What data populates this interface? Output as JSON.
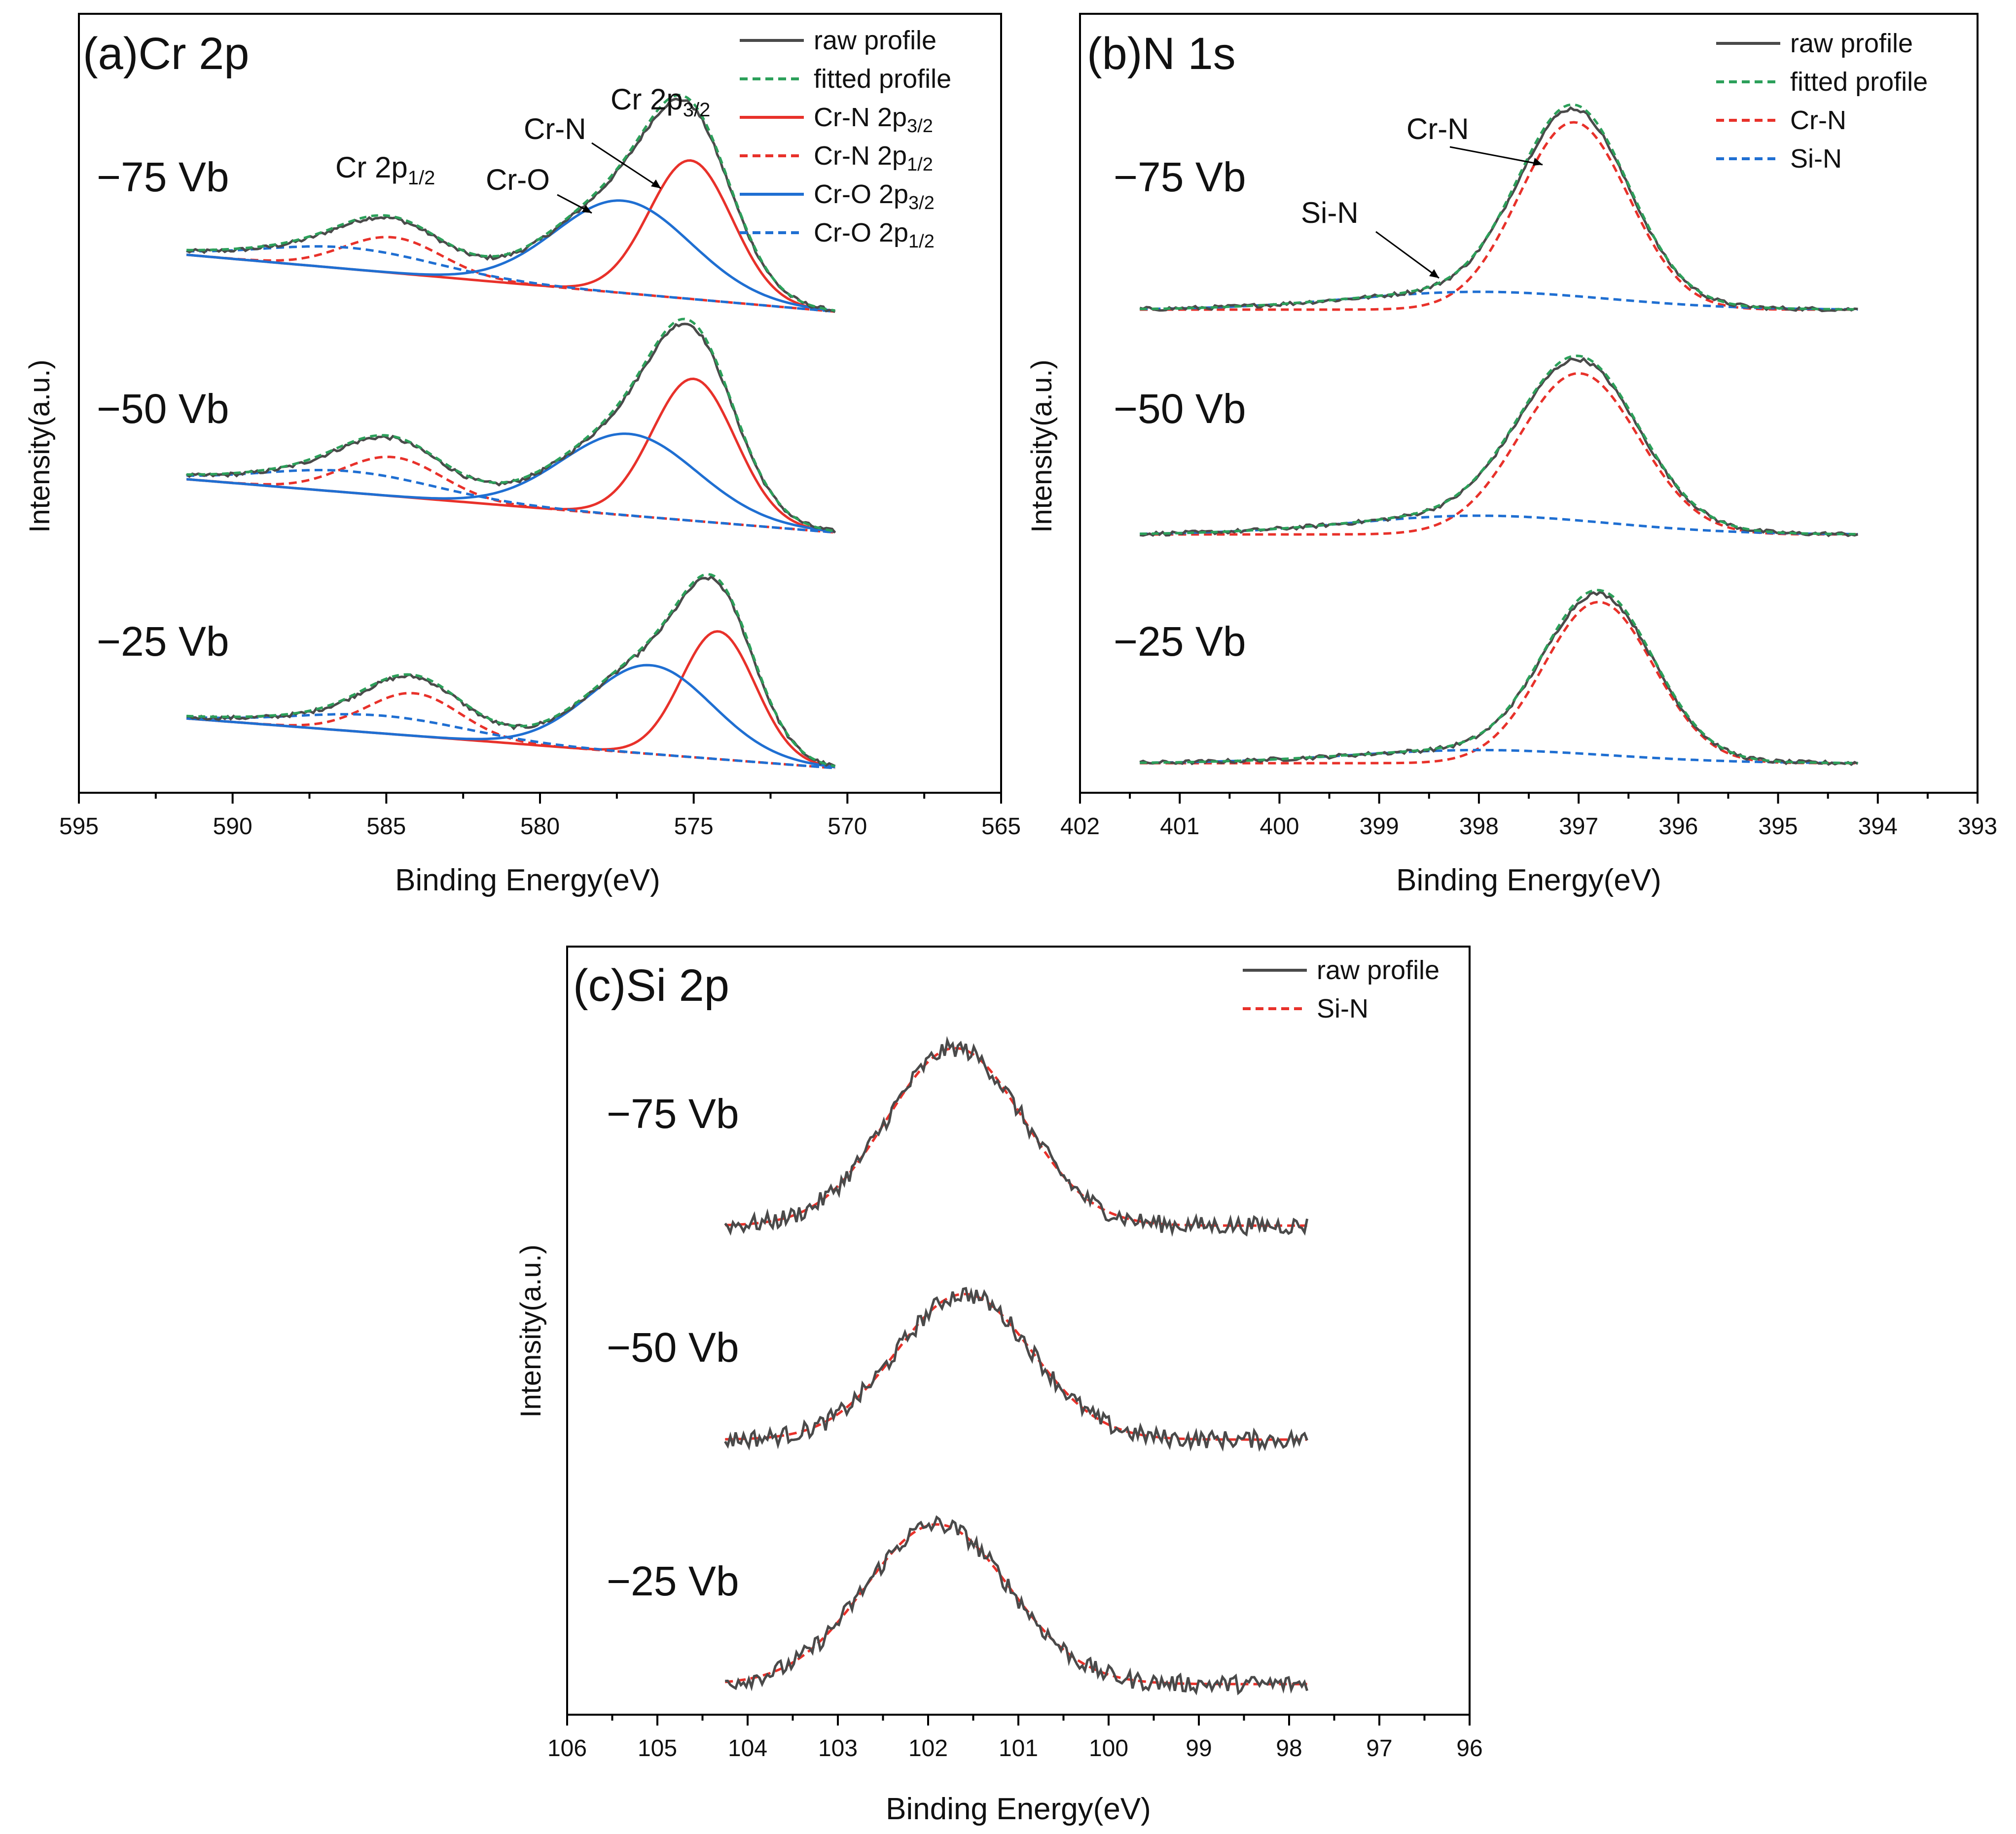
{
  "chart_data": [
    {
      "type": "line",
      "panel": "a",
      "title": "(a)Cr 2p",
      "xlabel": "Binding Energy(eV)",
      "ylabel": "Intensity(a.u.)",
      "xlim": [
        595,
        565
      ],
      "x_ticks": [
        "595",
        "590",
        "585",
        "580",
        "575",
        "570",
        "565"
      ],
      "x_range_data": [
        591.5,
        570.4
      ],
      "legend_position": "top-right",
      "legend": [
        {
          "label": "raw profile",
          "color": "#4a4a4a",
          "style": "solid"
        },
        {
          "label": "fitted profile",
          "color": "#2ca05a",
          "style": "dashed"
        },
        {
          "label": "Cr-N 2p3/2",
          "color": "#e8312a",
          "style": "solid"
        },
        {
          "label": "Cr-N 2p1/2",
          "color": "#e8312a",
          "style": "dashed"
        },
        {
          "label": "Cr-O 2p3/2",
          "color": "#1f6fd2",
          "style": "solid"
        },
        {
          "label": "Cr-O 2p1/2",
          "color": "#1f6fd2",
          "style": "dashed"
        }
      ],
      "groups": [
        {
          "label": "−75 Vb",
          "baseline_left": 0.32,
          "components": [
            {
              "name": "Cr-N 2p3/2",
              "center": 575.1,
              "width": 1.35,
              "height": 0.78
            },
            {
              "name": "Cr-N 2p1/2",
              "center": 584.8,
              "width": 1.6,
              "height": 0.2
            },
            {
              "name": "Cr-O 2p3/2",
              "center": 577.3,
              "width": 2.2,
              "height": 0.52
            },
            {
              "name": "Cr-O 2p1/2",
              "center": 586.2,
              "width": 2.8,
              "height": 0.12
            }
          ]
        },
        {
          "label": "−50 Vb",
          "baseline_left": 0.3,
          "components": [
            {
              "name": "Cr-N 2p3/2",
              "center": 575.0,
              "width": 1.35,
              "height": 0.8
            },
            {
              "name": "Cr-N 2p1/2",
              "center": 584.8,
              "width": 1.6,
              "height": 0.22
            },
            {
              "name": "Cr-O 2p3/2",
              "center": 577.1,
              "width": 2.2,
              "height": 0.46
            },
            {
              "name": "Cr-O 2p1/2",
              "center": 586.2,
              "width": 2.8,
              "height": 0.12
            }
          ]
        },
        {
          "label": "−25 Vb",
          "baseline_left": 0.28,
          "components": [
            {
              "name": "Cr-N 2p3/2",
              "center": 574.2,
              "width": 1.2,
              "height": 0.72
            },
            {
              "name": "Cr-N 2p1/2",
              "center": 584.1,
              "width": 1.5,
              "height": 0.24
            },
            {
              "name": "Cr-O 2p3/2",
              "center": 576.4,
              "width": 2.0,
              "height": 0.5
            },
            {
              "name": "Cr-O 2p1/2",
              "center": 585.2,
              "width": 2.8,
              "height": 0.1
            }
          ]
        }
      ],
      "annotations": [
        "Cr 2p",
        "1/2",
        "Cr-O",
        "Cr-N",
        "Cr 2p",
        "3/2"
      ]
    },
    {
      "type": "line",
      "panel": "b",
      "title": "(b)N 1s",
      "xlabel": "Binding Energy(eV)",
      "ylabel": "Intensity(a.u.)",
      "xlim": [
        402,
        393
      ],
      "x_ticks": [
        "402",
        "401",
        "400",
        "399",
        "398",
        "397",
        "396",
        "395",
        "394",
        "393"
      ],
      "x_range_data": [
        401.4,
        394.2
      ],
      "legend_position": "top-right",
      "legend": [
        {
          "label": "raw profile",
          "color": "#4a4a4a",
          "style": "solid"
        },
        {
          "label": "fitted profile",
          "color": "#2ca05a",
          "style": "dashed"
        },
        {
          "label": "Cr-N",
          "color": "#e8312a",
          "style": "dashed"
        },
        {
          "label": "Si-N",
          "color": "#1f6fd2",
          "style": "dashed"
        }
      ],
      "groups": [
        {
          "label": "−75 Vb",
          "components": [
            {
              "name": "Cr-N",
              "center": 397.05,
              "width": 0.55,
              "height": 1.0
            },
            {
              "name": "Si-N",
              "center": 398.0,
              "width": 1.3,
              "height": 0.095
            }
          ]
        },
        {
          "label": "−50 Vb",
          "components": [
            {
              "name": "Cr-N",
              "center": 397.0,
              "width": 0.6,
              "height": 0.86
            },
            {
              "name": "Si-N",
              "center": 398.0,
              "width": 1.3,
              "height": 0.1
            }
          ]
        },
        {
          "label": "−25 Vb",
          "components": [
            {
              "name": "Cr-N",
              "center": 396.8,
              "width": 0.55,
              "height": 0.86
            },
            {
              "name": "Si-N",
              "center": 398.0,
              "width": 1.3,
              "height": 0.07
            }
          ]
        }
      ],
      "annotations": [
        "Cr-N",
        "Si-N"
      ]
    },
    {
      "type": "line",
      "panel": "c",
      "title": "(c)Si 2p",
      "xlabel": "Binding Energy(eV)",
      "ylabel": "Intensity(a.u.)",
      "xlim": [
        106,
        96
      ],
      "x_ticks": [
        "106",
        "105",
        "104",
        "103",
        "102",
        "101",
        "100",
        "99",
        "98",
        "97",
        "96"
      ],
      "x_range_data": [
        104.25,
        97.8
      ],
      "legend_position": "top-right",
      "legend": [
        {
          "label": "raw profile",
          "color": "#4a4a4a",
          "style": "solid"
        },
        {
          "label": "Si-N",
          "color": "#e8312a",
          "style": "dashed"
        }
      ],
      "groups": [
        {
          "label": "−75 Vb",
          "components": [
            {
              "name": "Si-N",
              "center": 101.7,
              "width": 0.75,
              "height": 1.0
            }
          ]
        },
        {
          "label": "−50 Vb",
          "components": [
            {
              "name": "Si-N",
              "center": 101.6,
              "width": 0.75,
              "height": 0.82
            }
          ]
        },
        {
          "label": "−25 Vb",
          "components": [
            {
              "name": "Si-N",
              "center": 101.9,
              "width": 0.8,
              "height": 0.9
            }
          ]
        }
      ]
    }
  ]
}
